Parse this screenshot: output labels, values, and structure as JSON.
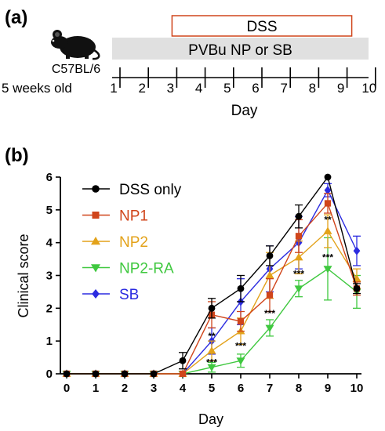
{
  "panel_a": {
    "label": "(a)",
    "strain": "C57BL/6",
    "age": "5 weeks old",
    "dss_label": "DSS",
    "treatment_label": "PVBu NP or SB",
    "axis_label": "Day",
    "days": [
      "1",
      "2",
      "3",
      "4",
      "5",
      "6",
      "7",
      "8",
      "9",
      "10"
    ],
    "dss_start_day": 3,
    "dss_end_day": 9,
    "treatment_start_day": 0,
    "treatment_end_day": 10,
    "colors": {
      "dss_box": "#d0451b",
      "treatment_bar": "#e0e0e0"
    },
    "icon": "mouse-icon"
  },
  "panel_b": {
    "label": "(b)"
  },
  "chart_data": {
    "type": "line",
    "xlabel": "Day",
    "ylabel": "Clinical score",
    "x": [
      0,
      1,
      2,
      3,
      4,
      5,
      6,
      7,
      8,
      9,
      10
    ],
    "xlim": [
      0,
      10
    ],
    "ylim": [
      0,
      6
    ],
    "yticks": [
      0,
      1,
      2,
      3,
      4,
      5,
      6
    ],
    "legend_position": "top-left",
    "series": [
      {
        "name": "DSS only",
        "color": "#000000",
        "marker": "circle",
        "values": [
          0,
          0,
          0,
          0,
          0.4,
          2.0,
          2.6,
          3.6,
          4.8,
          6.0,
          2.6
        ],
        "errors": [
          0,
          0,
          0,
          0,
          0.25,
          0.3,
          0.4,
          0.3,
          0.35,
          0,
          0.15
        ]
      },
      {
        "name": "NP1",
        "color": "#d0451b",
        "marker": "square",
        "values": [
          0,
          0,
          0,
          0,
          0,
          1.8,
          1.6,
          2.4,
          4.2,
          5.2,
          2.6
        ],
        "errors": [
          0,
          0,
          0,
          0,
          0,
          0.4,
          0.3,
          0.5,
          0.5,
          0.3,
          0.2
        ]
      },
      {
        "name": "NP2",
        "color": "#e3a21a",
        "marker": "triangle-up",
        "values": [
          0,
          0,
          0,
          0,
          0,
          0.7,
          1.3,
          3.0,
          3.55,
          4.35,
          2.9
        ],
        "errors": [
          0,
          0,
          0,
          0,
          0,
          0.3,
          0.4,
          0.7,
          0.5,
          0.5,
          0.3
        ]
      },
      {
        "name": "NP2-RA",
        "color": "#3fc83f",
        "marker": "triangle-down",
        "values": [
          0,
          0,
          0,
          0,
          0,
          0.2,
          0.4,
          1.4,
          2.6,
          3.2,
          2.5
        ],
        "errors": [
          0,
          0,
          0,
          0,
          0,
          0.15,
          0.2,
          0.25,
          0.25,
          0.95,
          0.5
        ]
      },
      {
        "name": "SB",
        "color": "#2b2be0",
        "marker": "diamond",
        "values": [
          0,
          0,
          0,
          0,
          0,
          1.0,
          2.2,
          3.2,
          4.0,
          5.6,
          3.75
        ],
        "errors": [
          0,
          0,
          0,
          0,
          0,
          0.4,
          0.7,
          0.7,
          0.8,
          0.2,
          0.45
        ]
      }
    ],
    "annotations": [
      {
        "x": 5,
        "y": 1.05,
        "text": "**"
      },
      {
        "x": 5,
        "y": 0.25,
        "text": "***"
      },
      {
        "x": 6,
        "y": 0.75,
        "text": "***"
      },
      {
        "x": 7,
        "y": 1.75,
        "text": "***"
      },
      {
        "x": 8,
        "y": 2.95,
        "text": "***"
      },
      {
        "x": 9,
        "y": 4.6,
        "text": "**"
      },
      {
        "x": 9,
        "y": 3.45,
        "text": "***"
      }
    ]
  }
}
